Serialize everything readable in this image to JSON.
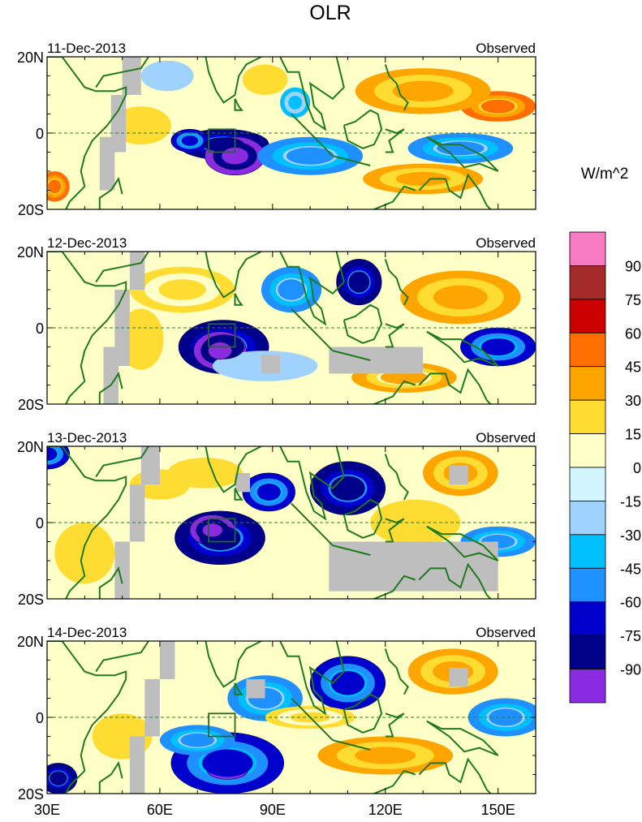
{
  "chart_data": {
    "type": "heatmap",
    "title": "OLR",
    "units": "W/m^2",
    "source_label": "Observed",
    "xlim": [
      30,
      160
    ],
    "ylim": [
      -20,
      20
    ],
    "x_ticks": [
      {
        "value": 30,
        "label": "30E"
      },
      {
        "value": 60,
        "label": "60E"
      },
      {
        "value": 90,
        "label": "90E"
      },
      {
        "value": 120,
        "label": "120E"
      },
      {
        "value": 150,
        "label": "150E"
      }
    ],
    "y_ticks": [
      {
        "value": 20,
        "label": "20N"
      },
      {
        "value": 0,
        "label": "0"
      },
      {
        "value": -20,
        "label": "20S"
      }
    ],
    "box_region": {
      "lon": [
        73,
        80
      ],
      "lat": [
        -5,
        1
      ]
    },
    "colorbar": {
      "levels": [
        "90",
        "75",
        "60",
        "45",
        "30",
        "15",
        "0",
        "-15",
        "-30",
        "-45",
        "-60",
        "-75",
        "-90"
      ],
      "colors": [
        "#f77ac2",
        "#a52a2a",
        "#cd0000",
        "#ff6e00",
        "#ffa500",
        "#ffdc32",
        "#ffffc8",
        "#d2f5ff",
        "#a0d2ff",
        "#00bfff",
        "#1e90ff",
        "#0000cd",
        "#00008b",
        "#8a2be2"
      ]
    },
    "panels": [
      {
        "date": "11-Dec-2013",
        "anomalies": [
          {
            "lon": 77,
            "lat": -3,
            "rx": 12,
            "ry": 4,
            "value": -80
          },
          {
            "lon": 80,
            "lat": -6,
            "rx": 8,
            "ry": 5,
            "value": -90
          },
          {
            "lon": 68,
            "lat": -2,
            "rx": 5,
            "ry": 3,
            "value": -60
          },
          {
            "lon": 100,
            "lat": -6,
            "rx": 14,
            "ry": 5,
            "value": -50
          },
          {
            "lon": 140,
            "lat": -4,
            "rx": 14,
            "ry": 4,
            "value": -45
          },
          {
            "lon": 96,
            "lat": 8,
            "rx": 4,
            "ry": 4,
            "value": -40
          },
          {
            "lon": 150,
            "lat": 7,
            "rx": 10,
            "ry": 4,
            "value": 55
          },
          {
            "lon": 130,
            "lat": 11,
            "rx": 18,
            "ry": 6,
            "value": 35
          },
          {
            "lon": 130,
            "lat": -12,
            "rx": 16,
            "ry": 4,
            "value": 40
          },
          {
            "lon": 32,
            "lat": -14,
            "rx": 4,
            "ry": 4,
            "value": 55
          },
          {
            "lon": 55,
            "lat": 2,
            "rx": 8,
            "ry": 5,
            "value": 25
          },
          {
            "lon": 88,
            "lat": 14,
            "rx": 6,
            "ry": 4,
            "value": 20
          },
          {
            "lon": 62,
            "lat": 15,
            "rx": 7,
            "ry": 4,
            "value": -15
          }
        ],
        "missing": [
          {
            "lon": [
              50,
              55
            ],
            "lat": [
              10,
              20
            ]
          },
          {
            "lon": [
              47,
              51
            ],
            "lat": [
              -5,
              10
            ]
          },
          {
            "lon": [
              44,
              48
            ],
            "lat": [
              -15,
              -1
            ]
          }
        ]
      },
      {
        "date": "12-Dec-2013",
        "anomalies": [
          {
            "lon": 77,
            "lat": -5,
            "rx": 12,
            "ry": 7,
            "value": -80
          },
          {
            "lon": 76,
            "lat": -6,
            "rx": 7,
            "ry": 5,
            "value": -90
          },
          {
            "lon": 113,
            "lat": 12,
            "rx": 6,
            "ry": 6,
            "value": -80
          },
          {
            "lon": 95,
            "lat": 10,
            "rx": 8,
            "ry": 6,
            "value": -50
          },
          {
            "lon": 150,
            "lat": -5,
            "rx": 10,
            "ry": 5,
            "value": -60
          },
          {
            "lon": 88,
            "lat": -10,
            "rx": 14,
            "ry": 4,
            "value": -25
          },
          {
            "lon": 140,
            "lat": 8,
            "rx": 16,
            "ry": 7,
            "value": 35
          },
          {
            "lon": 66,
            "lat": 10,
            "rx": 14,
            "ry": 6,
            "value": 30
          },
          {
            "lon": 125,
            "lat": -13,
            "rx": 14,
            "ry": 4,
            "value": 45
          },
          {
            "lon": 55,
            "lat": -3,
            "rx": 6,
            "ry": 8,
            "value": 20
          }
        ],
        "missing": [
          {
            "lon": [
              52,
              56
            ],
            "lat": [
              10,
              20
            ]
          },
          {
            "lon": [
              48,
              52
            ],
            "lat": [
              -10,
              10
            ]
          },
          {
            "lon": [
              45,
              49
            ],
            "lat": [
              -20,
              -5
            ]
          },
          {
            "lon": [
              105,
              130
            ],
            "lat": [
              -12,
              -5
            ]
          },
          {
            "lon": [
              87,
              92
            ],
            "lat": [
              -12,
              -7
            ]
          }
        ]
      },
      {
        "date": "13-Dec-2013",
        "anomalies": [
          {
            "lon": 76,
            "lat": -4,
            "rx": 12,
            "ry": 7,
            "value": -80
          },
          {
            "lon": 74,
            "lat": -2,
            "rx": 6,
            "ry": 4,
            "value": -90
          },
          {
            "lon": 110,
            "lat": 9,
            "rx": 10,
            "ry": 7,
            "value": -75
          },
          {
            "lon": 89,
            "lat": 8,
            "rx": 7,
            "ry": 5,
            "value": -60
          },
          {
            "lon": 30,
            "lat": 18,
            "rx": 6,
            "ry": 4,
            "value": -60
          },
          {
            "lon": 150,
            "lat": -5,
            "rx": 10,
            "ry": 4,
            "value": -45
          },
          {
            "lon": 140,
            "lat": 13,
            "rx": 10,
            "ry": 6,
            "value": 35
          },
          {
            "lon": 72,
            "lat": 13,
            "rx": 10,
            "ry": 4,
            "value": 20
          },
          {
            "lon": 60,
            "lat": 10,
            "rx": 8,
            "ry": 4,
            "value": 20
          },
          {
            "lon": 128,
            "lat": 0,
            "rx": 12,
            "ry": 6,
            "value": 25
          },
          {
            "lon": 40,
            "lat": -8,
            "rx": 8,
            "ry": 8,
            "value": 25
          }
        ],
        "missing": [
          {
            "lon": [
              55,
              60
            ],
            "lat": [
              10,
              20
            ]
          },
          {
            "lon": [
              52,
              56
            ],
            "lat": [
              -5,
              10
            ]
          },
          {
            "lon": [
              48,
              52
            ],
            "lat": [
              -20,
              -5
            ]
          },
          {
            "lon": [
              105,
              150
            ],
            "lat": [
              -18,
              -5
            ]
          },
          {
            "lon": [
              80,
              84
            ],
            "lat": [
              8,
              13
            ]
          },
          {
            "lon": [
              137,
              142
            ],
            "lat": [
              10,
              15
            ]
          }
        ]
      },
      {
        "date": "14-Dec-2013",
        "anomalies": [
          {
            "lon": 78,
            "lat": -14,
            "rx": 12,
            "ry": 5,
            "value": -90
          },
          {
            "lon": 78,
            "lat": -12,
            "rx": 15,
            "ry": 8,
            "value": -70
          },
          {
            "lon": 70,
            "lat": -6,
            "rx": 10,
            "ry": 4,
            "value": -50
          },
          {
            "lon": 110,
            "lat": 9,
            "rx": 10,
            "ry": 7,
            "value": -60
          },
          {
            "lon": 88,
            "lat": 5,
            "rx": 10,
            "ry": 6,
            "value": -45
          },
          {
            "lon": 33,
            "lat": -16,
            "rx": 5,
            "ry": 4,
            "value": -75
          },
          {
            "lon": 152,
            "lat": 0,
            "rx": 10,
            "ry": 5,
            "value": -50
          },
          {
            "lon": 138,
            "lat": 12,
            "rx": 12,
            "ry": 6,
            "value": 35
          },
          {
            "lon": 120,
            "lat": -10,
            "rx": 18,
            "ry": 5,
            "value": 40
          },
          {
            "lon": 100,
            "lat": 0,
            "rx": 12,
            "ry": 3,
            "value": 30
          },
          {
            "lon": 50,
            "lat": -5,
            "rx": 8,
            "ry": 6,
            "value": 25
          }
        ],
        "missing": [
          {
            "lon": [
              60,
              64
            ],
            "lat": [
              10,
              20
            ]
          },
          {
            "lon": [
              56,
              60
            ],
            "lat": [
              -5,
              10
            ]
          },
          {
            "lon": [
              52,
              56
            ],
            "lat": [
              -20,
              -5
            ]
          },
          {
            "lon": [
              83,
              88
            ],
            "lat": [
              5,
              10
            ]
          },
          {
            "lon": [
              137,
              142
            ],
            "lat": [
              8,
              13
            ]
          }
        ]
      }
    ]
  }
}
